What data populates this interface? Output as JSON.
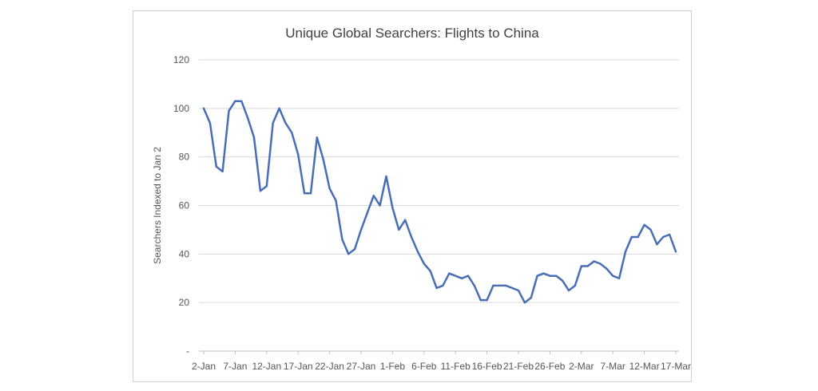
{
  "chart_data": {
    "type": "line",
    "title": "Unique Global Searchers: Flights to China",
    "xlabel": "",
    "ylabel": "Searchers Indexed to Jan 2",
    "ylim": [
      0,
      120
    ],
    "y_ticks": [
      {
        "value": 0,
        "label": "-"
      },
      {
        "value": 20,
        "label": "20"
      },
      {
        "value": 40,
        "label": "40"
      },
      {
        "value": 60,
        "label": "60"
      },
      {
        "value": 80,
        "label": "80"
      },
      {
        "value": 100,
        "label": "100"
      },
      {
        "value": 120,
        "label": "120"
      }
    ],
    "x_tick_labels": [
      "2-Jan",
      "7-Jan",
      "12-Jan",
      "17-Jan",
      "22-Jan",
      "27-Jan",
      "1-Feb",
      "6-Feb",
      "11-Feb",
      "16-Feb",
      "21-Feb",
      "26-Feb",
      "2-Mar",
      "7-Mar",
      "12-Mar",
      "17-Mar"
    ],
    "x_tick_every": 5,
    "grid": true,
    "color": "#4a6eb5",
    "values": [
      100,
      94,
      76,
      74,
      99,
      103,
      103,
      96,
      88,
      66,
      68,
      94,
      100,
      94,
      90,
      81,
      65,
      65,
      88,
      79,
      67,
      62,
      46,
      40,
      42,
      50,
      57,
      64,
      60,
      72,
      59,
      50,
      54,
      47,
      41,
      36,
      33,
      26,
      27,
      32,
      31,
      30,
      31,
      27,
      21,
      21,
      27,
      27,
      27,
      26,
      25,
      20,
      22,
      31,
      32,
      31,
      31,
      29,
      25,
      27,
      35,
      35,
      37,
      36,
      34,
      31,
      30,
      41,
      47,
      47,
      52,
      50,
      44,
      47,
      48,
      41
    ]
  }
}
